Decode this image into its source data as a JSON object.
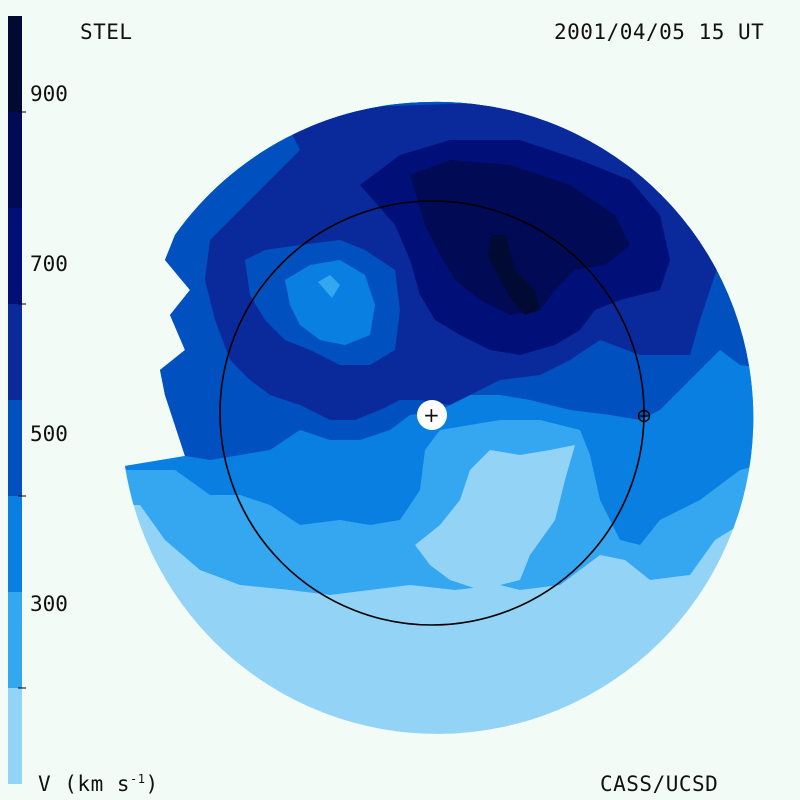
{
  "chart_data": {
    "type": "heatmap",
    "title": "STEL",
    "timestamp": "2001/04/05 15 UT",
    "credit": "CASS/UCSD",
    "colorbar": {
      "label_prefix": "V (km s",
      "label_exp": "-1",
      "label_suffix": ")",
      "ticks": [
        300,
        500,
        700,
        900
      ],
      "range": [
        200,
        1000
      ],
      "levels": [
        {
          "from": 200,
          "to": 300,
          "color": "#93d4f6"
        },
        {
          "from": 300,
          "to": 400,
          "color": "#35a7f1"
        },
        {
          "from": 400,
          "to": 500,
          "color": "#0a7fe2"
        },
        {
          "from": 500,
          "to": 600,
          "color": "#0051bf"
        },
        {
          "from": 600,
          "to": 700,
          "color": "#0a2a9c"
        },
        {
          "from": 700,
          "to": 800,
          "color": "#001078"
        },
        {
          "from": 800,
          "to": 900,
          "color": "#000a55"
        },
        {
          "from": 900,
          "to": 1000,
          "color": "#000a33"
        }
      ]
    },
    "markers": {
      "sun_symbol": "+",
      "earth_symbol": "⊕"
    }
  }
}
